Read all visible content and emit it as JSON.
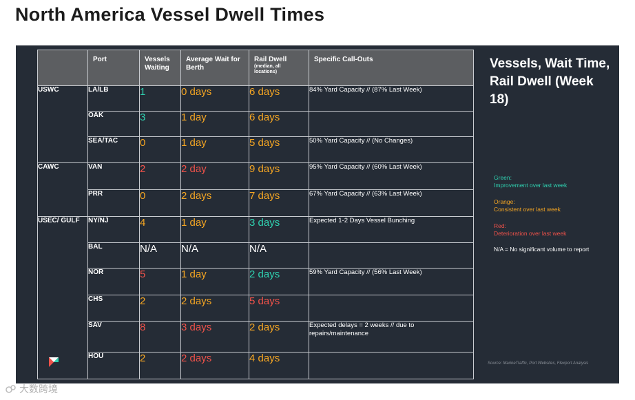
{
  "page_title": "North America Vessel Dwell Times",
  "colors": {
    "green": "#2fd1b0",
    "orange": "#f5a623",
    "red": "#f0524a",
    "white": "#ffffff",
    "panel": "#252c36",
    "header": "#5c5e61"
  },
  "table": {
    "headers": {
      "port": "Port",
      "vessels": "Vessels Waiting",
      "wait": "Average Wait for Berth",
      "rail": "Rail Dwell",
      "rail_sub": "(median, all locations)",
      "callouts": "Specific Call-Outs"
    },
    "regions": [
      {
        "label": "USWC",
        "rows": 3
      },
      {
        "label": "CAWC",
        "rows": 2
      },
      {
        "label": "USEC/ GULF",
        "rows": 6
      }
    ],
    "rows": [
      {
        "port": "LA/LB",
        "vessels": "1",
        "vessels_color": "green",
        "wait": "0 days",
        "wait_color": "orange",
        "rail": "6 days",
        "rail_color": "orange",
        "callout": "84% Yard Capacity // (87% Last Week)"
      },
      {
        "port": "OAK",
        "vessels": "3",
        "vessels_color": "green",
        "wait": "1 day",
        "wait_color": "orange",
        "rail": "6 days",
        "rail_color": "orange",
        "callout": ""
      },
      {
        "port": "SEA/TAC",
        "vessels": "0",
        "vessels_color": "orange",
        "wait": "1 day",
        "wait_color": "orange",
        "rail": "5 days",
        "rail_color": "orange",
        "callout": "50% Yard Capacity // (No Changes)"
      },
      {
        "port": "VAN",
        "vessels": "2",
        "vessels_color": "red",
        "wait": "2 day",
        "wait_color": "red",
        "rail": "9 days",
        "rail_color": "orange",
        "callout": "95% Yard Capacity  // (60% Last Week)"
      },
      {
        "port": "PRR",
        "vessels": "0",
        "vessels_color": "orange",
        "wait": "2 days",
        "wait_color": "orange",
        "rail": "7 days",
        "rail_color": "orange",
        "callout": "67% Yard Capacity  // (63% Last Week)"
      },
      {
        "port": "NY/NJ",
        "vessels": "4",
        "vessels_color": "orange",
        "wait": "1 day",
        "wait_color": "orange",
        "rail": "3 days",
        "rail_color": "green",
        "callout": "Expected 1-2 Days Vessel Bunching"
      },
      {
        "port": "BAL",
        "vessels": "N/A",
        "vessels_color": "white",
        "wait": "N/A",
        "wait_color": "white",
        "rail": "N/A",
        "rail_color": "white",
        "callout": ""
      },
      {
        "port": "NOR",
        "vessels": "5",
        "vessels_color": "red",
        "wait": "1 day",
        "wait_color": "orange",
        "rail": "2 days",
        "rail_color": "green",
        "callout": "59% Yard Capacity // (56% Last Week)"
      },
      {
        "port": "CHS",
        "vessels": "2",
        "vessels_color": "orange",
        "wait": "2 days",
        "wait_color": "orange",
        "rail": "5 days",
        "rail_color": "red",
        "callout": ""
      },
      {
        "port": "SAV",
        "vessels": "8",
        "vessels_color": "red",
        "wait": "3 days",
        "wait_color": "red",
        "rail": "2 days",
        "rail_color": "orange",
        "callout": "Expected delays = 2 weeks // due to repairs/maintenance"
      },
      {
        "port": "HOU",
        "vessels": "2",
        "vessels_color": "orange",
        "wait": "2 days",
        "wait_color": "red",
        "rail": "4 days",
        "rail_color": "orange",
        "callout": ""
      }
    ]
  },
  "side": {
    "title": "Vessels, Wait Time, Rail Dwell (Week 18)",
    "legend_green_head": "Green:",
    "legend_green_text": "Improvement over last week",
    "legend_orange_head": "Orange:",
    "legend_orange_text": "Consistent over last week",
    "legend_red_head": "Red:",
    "legend_red_text": "Deterioration over last week",
    "na_note": "N/A = No significant volume to report",
    "source": "Source: MarineTraffic, Port Websites, Flexport Analysis"
  },
  "watermark": "大数跨境",
  "icons": {
    "logo": "flexport-logo-icon",
    "watermark": "watermark-logo-icon"
  }
}
